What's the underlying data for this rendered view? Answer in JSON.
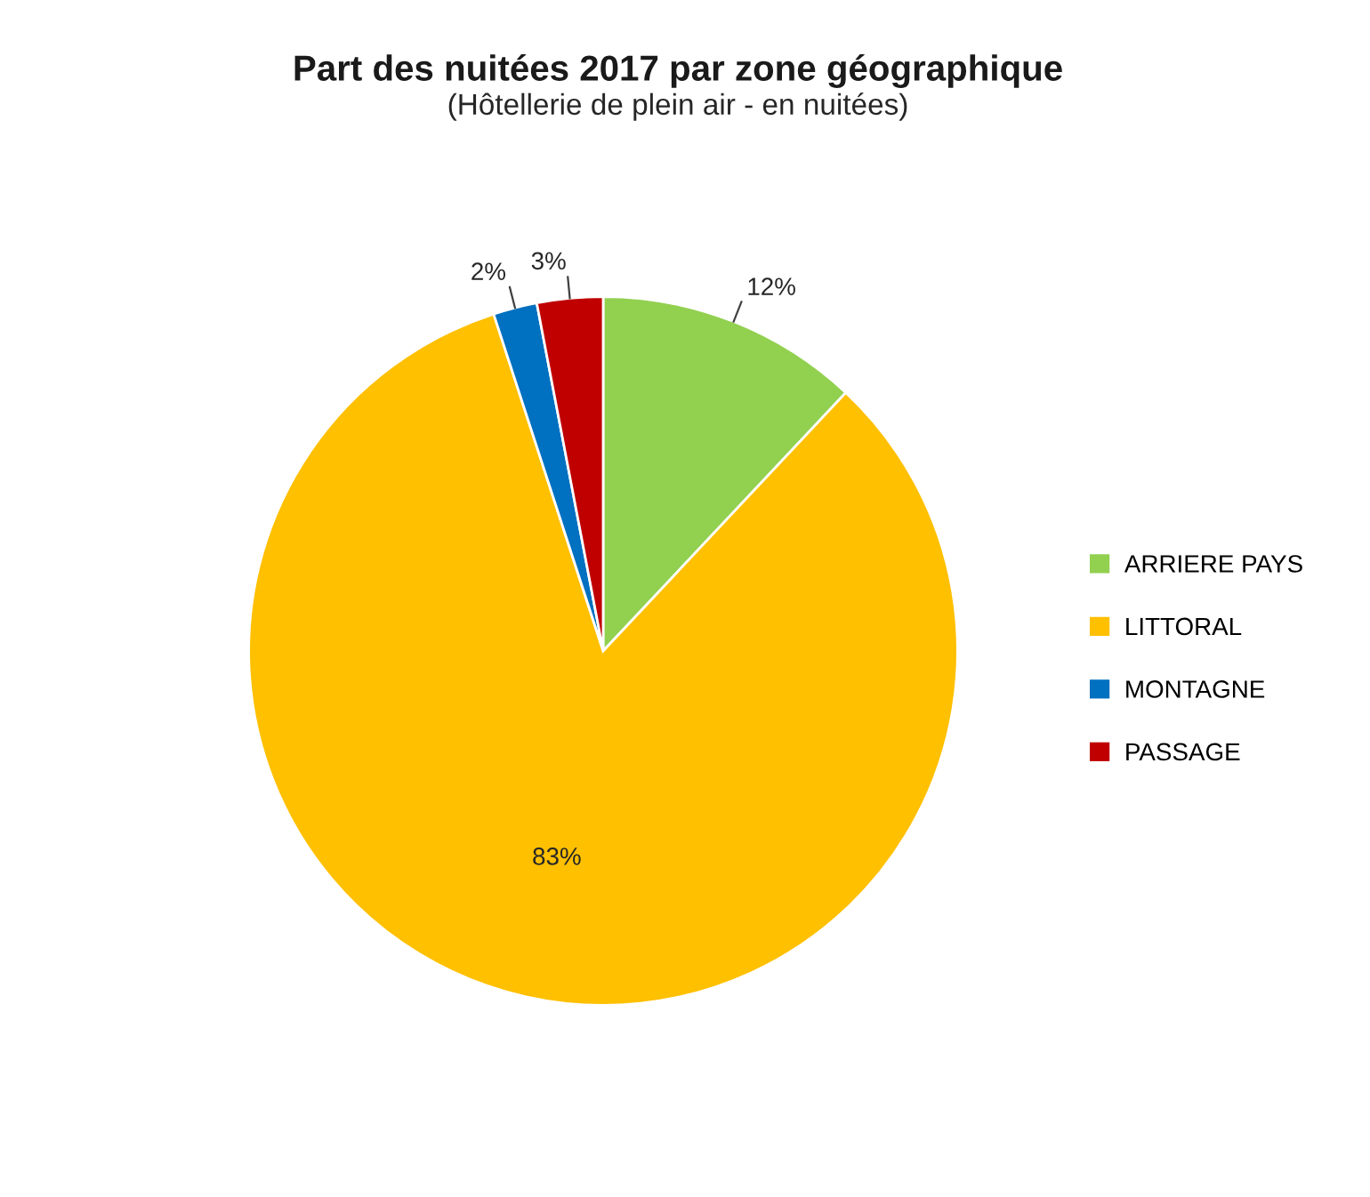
{
  "chart_data": {
    "type": "pie",
    "title": "Part des nuitées 2017 par zone géographique",
    "subtitle": "(Hôtellerie de plein air - en nuitées)",
    "categories": [
      "ARRIERE PAYS",
      "LITTORAL",
      "MONTAGNE",
      "PASSAGE"
    ],
    "values": [
      12,
      83,
      2,
      3
    ],
    "colors": [
      "#92d050",
      "#ffc000",
      "#0070c0",
      "#c00000"
    ],
    "value_labels": [
      "12%",
      "83%",
      "2%",
      "3%"
    ],
    "legend": "right"
  }
}
